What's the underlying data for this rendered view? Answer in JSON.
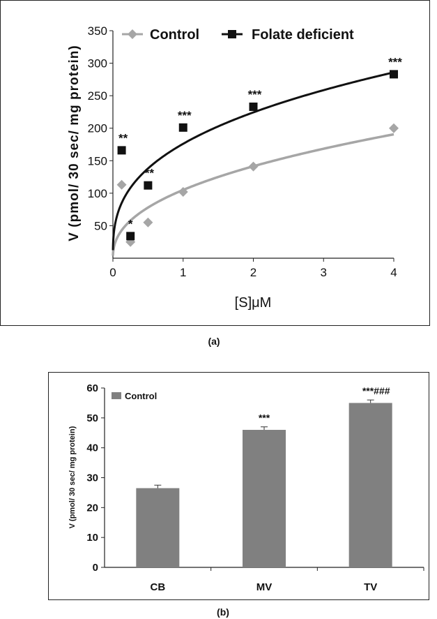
{
  "chart_data": [
    {
      "type": "scatter",
      "panel": "(a)",
      "xlabel": "[S]μM",
      "ylabel": "V (pmol/ 30 sec/ mg protein)",
      "xlim": [
        0,
        4
      ],
      "ylim": [
        0,
        350
      ],
      "xticks": [
        0,
        1,
        2,
        3,
        4
      ],
      "yticks": [
        50,
        100,
        150,
        200,
        250,
        300,
        350
      ],
      "legend_position": "top",
      "grid": false,
      "series": [
        {
          "name": "Control",
          "marker": "diamond",
          "color": "#a6a6a6",
          "points": [
            {
              "x": 0.125,
              "y": 113
            },
            {
              "x": 0.25,
              "y": 25
            },
            {
              "x": 0.5,
              "y": 55
            },
            {
              "x": 1,
              "y": 102
            },
            {
              "x": 2,
              "y": 141
            },
            {
              "x": 4,
              "y": 200
            }
          ],
          "fit": {
            "type": "power",
            "a": 105,
            "b": 0.43
          }
        },
        {
          "name": "Folate deficient",
          "marker": "square",
          "color": "#111111",
          "points": [
            {
              "x": 0.125,
              "y": 166,
              "sig": "**"
            },
            {
              "x": 0.25,
              "y": 34,
              "sig": "*"
            },
            {
              "x": 0.5,
              "y": 112,
              "sig": "**"
            },
            {
              "x": 1,
              "y": 201,
              "sig": "***"
            },
            {
              "x": 2,
              "y": 233,
              "sig": "***"
            },
            {
              "x": 4,
              "y": 283,
              "sig": "***"
            }
          ],
          "fit": {
            "type": "power",
            "a": 176,
            "b": 0.35
          }
        }
      ]
    },
    {
      "type": "bar",
      "panel": "(b)",
      "categories": [
        "CB",
        "MV",
        "TV"
      ],
      "series": [
        {
          "name": "Control",
          "values": [
            26.5,
            46,
            55
          ],
          "errors": [
            1.0,
            1.0,
            1.0
          ],
          "color": "#808080"
        }
      ],
      "annotations": [
        "",
        "***",
        "***###"
      ],
      "ylabel": "V (pmol/ 30 sec/ mg protein)",
      "ylim": [
        0,
        60
      ],
      "yticks": [
        0,
        10,
        20,
        30,
        40,
        50,
        60
      ],
      "legend_position": "top-left",
      "grid": false
    }
  ],
  "captions": {
    "a": "(a)",
    "b": "(b)"
  }
}
